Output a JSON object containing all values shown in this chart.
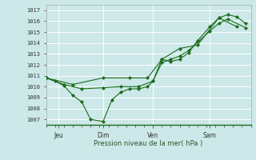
{
  "background_color": "#cce8e8",
  "plot_bg_color": "#cce8e8",
  "grid_color": "#ffffff",
  "line_color": "#1a6b1a",
  "marker_color": "#1a6b1a",
  "xlabel": "Pression niveau de la mer( hPa )",
  "ylim": [
    1006.5,
    1017.5
  ],
  "yticks": [
    1007,
    1008,
    1009,
    1010,
    1011,
    1012,
    1013,
    1014,
    1015,
    1016,
    1017
  ],
  "xlim": [
    0,
    11.5
  ],
  "day_labels": [
    "Jeu",
    "Dim",
    "Ven",
    "Sam"
  ],
  "day_positions": [
    0.7,
    3.2,
    6.0,
    9.2
  ],
  "vlines_x": [
    0.7,
    3.2,
    6.0,
    9.2
  ],
  "series1_x": [
    0.0,
    0.5,
    1.0,
    1.5,
    2.0,
    2.5,
    3.2,
    3.7,
    4.2,
    4.7,
    5.2,
    5.7,
    6.0,
    6.5,
    7.0,
    7.5,
    8.0,
    8.5,
    9.2,
    9.7,
    10.2,
    10.7,
    11.2
  ],
  "series1_y": [
    1010.8,
    1010.5,
    1010.1,
    1009.2,
    1008.6,
    1007.0,
    1006.8,
    1008.8,
    1009.5,
    1009.8,
    1009.8,
    1010.0,
    1010.5,
    1012.5,
    1012.3,
    1012.5,
    1013.1,
    1014.2,
    1015.5,
    1016.3,
    1016.6,
    1016.4,
    1015.8
  ],
  "series2_x": [
    0.0,
    1.0,
    2.0,
    3.2,
    4.2,
    5.2,
    6.0,
    6.5,
    7.0,
    7.5,
    8.0,
    9.2,
    9.7,
    10.2,
    11.2
  ],
  "series2_y": [
    1010.8,
    1010.2,
    1009.8,
    1009.9,
    1010.0,
    1010.0,
    1010.5,
    1012.2,
    1012.5,
    1012.8,
    1013.3,
    1015.1,
    1015.8,
    1016.2,
    1015.4
  ],
  "series3_x": [
    0.0,
    1.5,
    3.2,
    4.7,
    5.7,
    6.5,
    7.5,
    8.5,
    9.7,
    10.7
  ],
  "series3_y": [
    1010.8,
    1010.2,
    1010.8,
    1010.8,
    1010.8,
    1012.5,
    1013.5,
    1013.8,
    1016.3,
    1015.5
  ]
}
